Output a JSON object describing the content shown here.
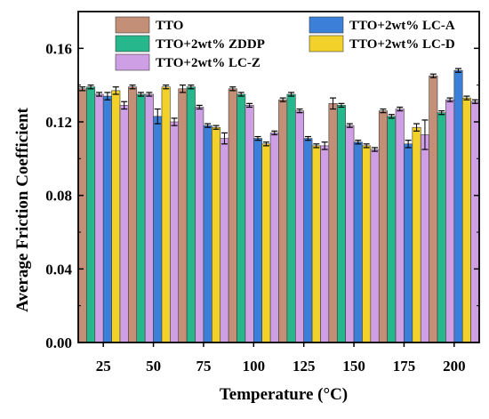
{
  "chart_data": {
    "type": "bar",
    "xlabel": "Temperature (°C)",
    "ylabel": "Average Friction Coefficient",
    "ylim": [
      0,
      0.18
    ],
    "yticks": [
      "0.00",
      "0.04",
      "0.08",
      "0.12",
      "0.16"
    ],
    "ytick_values": [
      0,
      0.04,
      0.08,
      0.12,
      0.16
    ],
    "categories": [
      "25",
      "50",
      "75",
      "100",
      "125",
      "150",
      "175",
      "200"
    ],
    "legend_position": "top",
    "series": [
      {
        "name": "TTO",
        "color": "#C48F77",
        "values": [
          0.138,
          0.139,
          0.138,
          0.138,
          0.132,
          0.13,
          0.126,
          0.145
        ],
        "errors": [
          0.001,
          0.001,
          0.002,
          0.001,
          0.001,
          0.003,
          0.001,
          0.001
        ]
      },
      {
        "name": "TTO+2wt% ZDDP",
        "color": "#27B78C",
        "values": [
          0.139,
          0.135,
          0.139,
          0.135,
          0.135,
          0.129,
          0.123,
          0.125
        ],
        "errors": [
          0.001,
          0.001,
          0.001,
          0.001,
          0.001,
          0.001,
          0.001,
          0.001
        ]
      },
      {
        "name": "TTO+2wt% LC-Z",
        "color": "#CF9FE6",
        "values": [
          0.135,
          0.135,
          0.128,
          0.129,
          0.126,
          0.118,
          0.127,
          0.132
        ],
        "errors": [
          0.001,
          0.001,
          0.001,
          0.001,
          0.001,
          0.001,
          0.001,
          0.001
        ]
      },
      {
        "name": "TTO+2wt% LC-A",
        "color": "#3C7FD8",
        "values": [
          0.134,
          0.123,
          0.118,
          0.111,
          0.111,
          0.109,
          0.108,
          0.148
        ],
        "errors": [
          0.002,
          0.004,
          0.001,
          0.001,
          0.001,
          0.001,
          0.002,
          0.001
        ]
      },
      {
        "name": "TTO+2wt% LC-D",
        "color": "#F2D12A",
        "values": [
          0.137,
          0.139,
          0.117,
          0.108,
          0.107,
          0.107,
          0.117,
          0.133
        ],
        "errors": [
          0.002,
          0.001,
          0.001,
          0.001,
          0.001,
          0.001,
          0.002,
          0.001
        ]
      },
      {
        "name": "TTO+2wt% LC-Z",
        "color": "#CF9FE6",
        "values": [
          0.129,
          0.12,
          0.111,
          0.114,
          0.107,
          0.105,
          0.113,
          0.131
        ],
        "errors": [
          0.002,
          0.002,
          0.003,
          0.001,
          0.002,
          0.001,
          0.008,
          0.001
        ]
      }
    ],
    "legend_entries": [
      {
        "label": "TTO",
        "color": "#C48F77"
      },
      {
        "label": "TTO+2wt% LC-A",
        "color": "#3C7FD8"
      },
      {
        "label": "TTO+2wt% ZDDP",
        "color": "#27B78C"
      },
      {
        "label": "TTO+2wt% LC-D",
        "color": "#F2D12A"
      },
      {
        "label": "TTO+2wt% LC-Z",
        "color": "#CF9FE6"
      }
    ]
  }
}
